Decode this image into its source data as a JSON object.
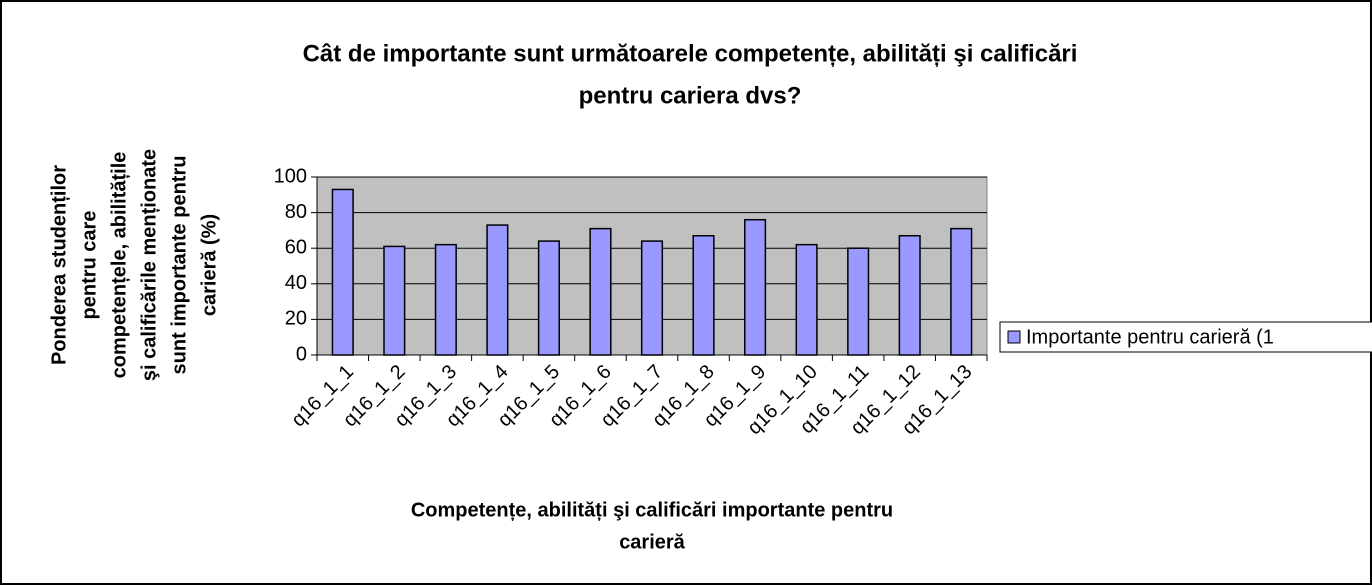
{
  "chart_data": {
    "type": "bar",
    "title_lines": [
      "Cât de importante sunt următoarele competențe, abilități şi calificări",
      "pentru cariera dvs?"
    ],
    "ylabel_lines": [
      "Ponderea studenților",
      "pentru care",
      "competențele, abilitățile",
      "şi calificările menționate",
      "sunt importante pentru",
      "carieră (%)"
    ],
    "xlabel_lines": [
      "Competențe, abilități şi calificări importante pentru",
      "carieră"
    ],
    "categories": [
      "q16_1_1",
      "q16_1_2",
      "q16_1_3",
      "q16_1_4",
      "q16_1_5",
      "q16_1_6",
      "q16_1_7",
      "q16_1_8",
      "q16_1_9",
      "q16_1_10",
      "q16_1_11",
      "q16_1_12",
      "q16_1_13"
    ],
    "series": [
      {
        "name": "Importante pentru carieră (1",
        "color": "#9999ff",
        "values": [
          93,
          61,
          62,
          73,
          64,
          71,
          64,
          67,
          76,
          62,
          60,
          67,
          71
        ]
      }
    ],
    "ylim": [
      0,
      100
    ],
    "yticks": [
      0,
      20,
      40,
      60,
      80,
      100
    ],
    "grid": true,
    "plot_background": "#c0c0c0",
    "legend": "right"
  }
}
